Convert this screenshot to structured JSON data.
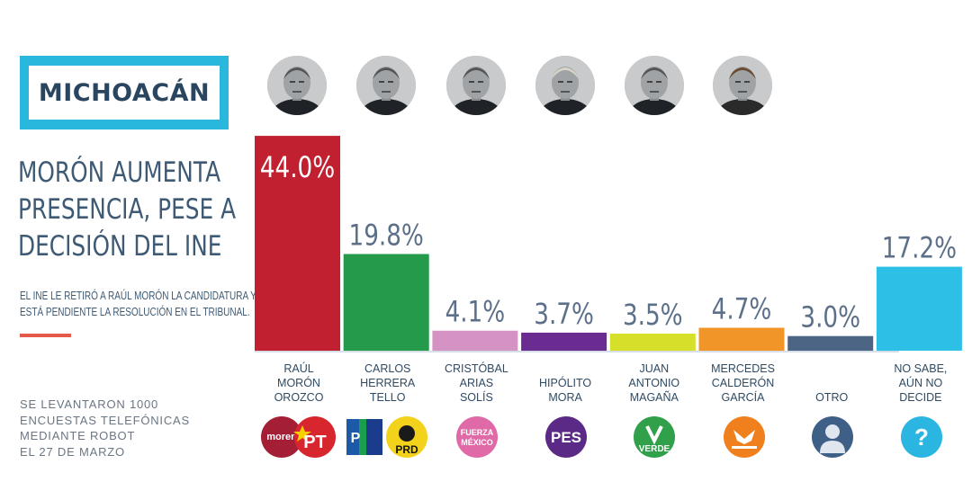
{
  "state": "MICHOACÁN",
  "headline": [
    "MORÓN AUMENTA",
    "PRESENCIA, PESE A",
    "DECISIÓN DEL INE"
  ],
  "subtext": [
    "EL INE LE RETIRÓ A RAÚL MORÓN  LA CANDIDATURA Y",
    "ESTÁ PENDIENTE LA RESOLUCIÓN EN EL TRIBUNAL."
  ],
  "note": [
    "SE LEVANTARON 1000",
    "ENCUESTAS TELEFÓNICAS",
    "MEDIANTE ROBOT",
    "EL 27 DE MARZO"
  ],
  "colors": {
    "state_frame": "#29b7dd",
    "title_text": "#3e5a74",
    "accent": "#e4594a"
  },
  "chart_data": {
    "type": "bar",
    "categories": [
      "RAÚL MORÓN OROZCO",
      "CARLOS HERRERA TELLO",
      "CRISTÓBAL ARIAS SOLÍS",
      "HIPÓLITO MORA",
      "JUAN ANTONIO MAGAÑA",
      "MERCEDES CALDERÓN GARCÍA",
      "OTRO",
      "NO SABE, AÚN NO DECIDE"
    ],
    "values": [
      44.0,
      19.8,
      4.1,
      3.7,
      3.5,
      4.7,
      3.0,
      17.2
    ],
    "value_labels": [
      "44.0%",
      "19.8%",
      "4.1%",
      "3.7%",
      "3.5%",
      "4.7%",
      "3.0%",
      "17.2%"
    ],
    "colors": [
      "#c0202f",
      "#249a4a",
      "#d593c4",
      "#6b2c91",
      "#d6e02a",
      "#f29528",
      "#4c6585",
      "#2dbfe6"
    ],
    "grid": false,
    "legend": "none"
  },
  "candidates": [
    {
      "name_lines": [
        "RAÚL",
        "MORÓN",
        "OROZCO"
      ],
      "photo": true,
      "badges": [
        {
          "icon": "morena-logo",
          "text": "moren",
          "color": "#a41f35"
        },
        {
          "icon": "pt-logo",
          "text": "PT",
          "color": "#d8262f"
        }
      ]
    },
    {
      "name_lines": [
        "CARLOS",
        "HERRERA",
        "TELLO"
      ],
      "photo": true,
      "badges": [
        {
          "icon": "pan-pri-prd-logo",
          "text": "PRD",
          "color": "#f3d21c"
        }
      ]
    },
    {
      "name_lines": [
        "CRISTÓBAL",
        "ARIAS",
        "SOLÍS"
      ],
      "photo": true,
      "badges": [
        {
          "icon": "fuerza-mexico-logo",
          "text": "FUERZA MÉXICO",
          "color": "#e06aa7"
        }
      ]
    },
    {
      "name_lines": [
        "HIPÓLITO",
        "MORA"
      ],
      "photo": true,
      "badges": [
        {
          "icon": "pes-logo",
          "text": "PES",
          "color": "#5b2a86"
        }
      ]
    },
    {
      "name_lines": [
        "JUAN",
        "ANTONIO",
        "MAGAÑA"
      ],
      "photo": true,
      "badges": [
        {
          "icon": "verde-logo",
          "text": "VERDE",
          "color": "#30a04a"
        }
      ]
    },
    {
      "name_lines": [
        "MERCEDES",
        "CALDERÓN",
        "GARCÍA"
      ],
      "photo": true,
      "badges": [
        {
          "icon": "movimiento-ciudadano-logo",
          "text": "MOVIMIENTO CIUDADANO",
          "color": "#f0801e"
        }
      ]
    },
    {
      "name_lines": [
        "OTRO"
      ],
      "photo": false,
      "badges": [
        {
          "icon": "person-silhouette-icon",
          "text": "",
          "color": "#3e5f86"
        }
      ]
    },
    {
      "name_lines": [
        "NO SABE,",
        "AÚN NO",
        "DECIDE"
      ],
      "photo": false,
      "badges": [
        {
          "icon": "question-icon",
          "text": "?",
          "color": "#2bb6e1"
        }
      ]
    }
  ]
}
